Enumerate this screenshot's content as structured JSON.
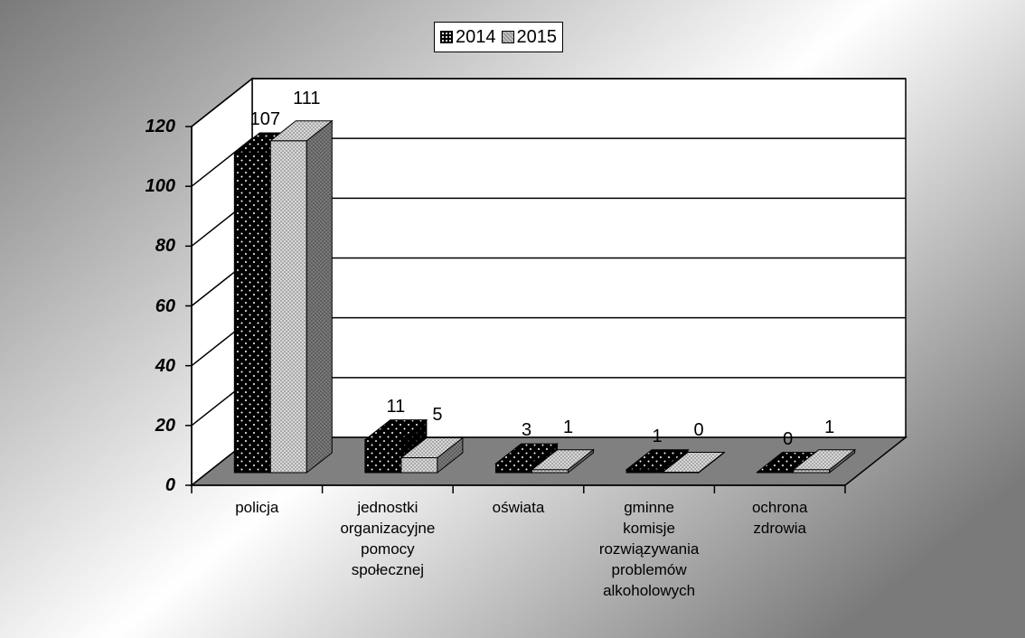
{
  "chart_data": {
    "type": "bar",
    "title": "",
    "xlabel": "",
    "ylabel": "",
    "ylim": [
      0,
      120
    ],
    "yticks": [
      "0",
      "20",
      "40",
      "60",
      "80",
      "100",
      "120"
    ],
    "grid": true,
    "legend_position": "top-center",
    "categories": [
      "policja",
      "jednostki\norganizacyjne\npomocy\nspołecznej",
      "oświata",
      "gminne\nkomisje\nrozwiązywania\nproblemów\nalkoholowych",
      "ochrona\nzdrowia"
    ],
    "series": [
      {
        "name": "2014",
        "values": [
          107,
          11,
          3,
          1,
          0
        ],
        "color": "#000000"
      },
      {
        "name": "2015",
        "values": [
          111,
          5,
          1,
          0,
          1
        ],
        "color": "#9a9a9a"
      }
    ]
  },
  "colors": {
    "background_gradient_dark": "#7d7d7d",
    "background_gradient_light": "#ffffff",
    "floor": "#808080",
    "series_2014": "#000000",
    "series_2015": "#9a9a9a"
  }
}
